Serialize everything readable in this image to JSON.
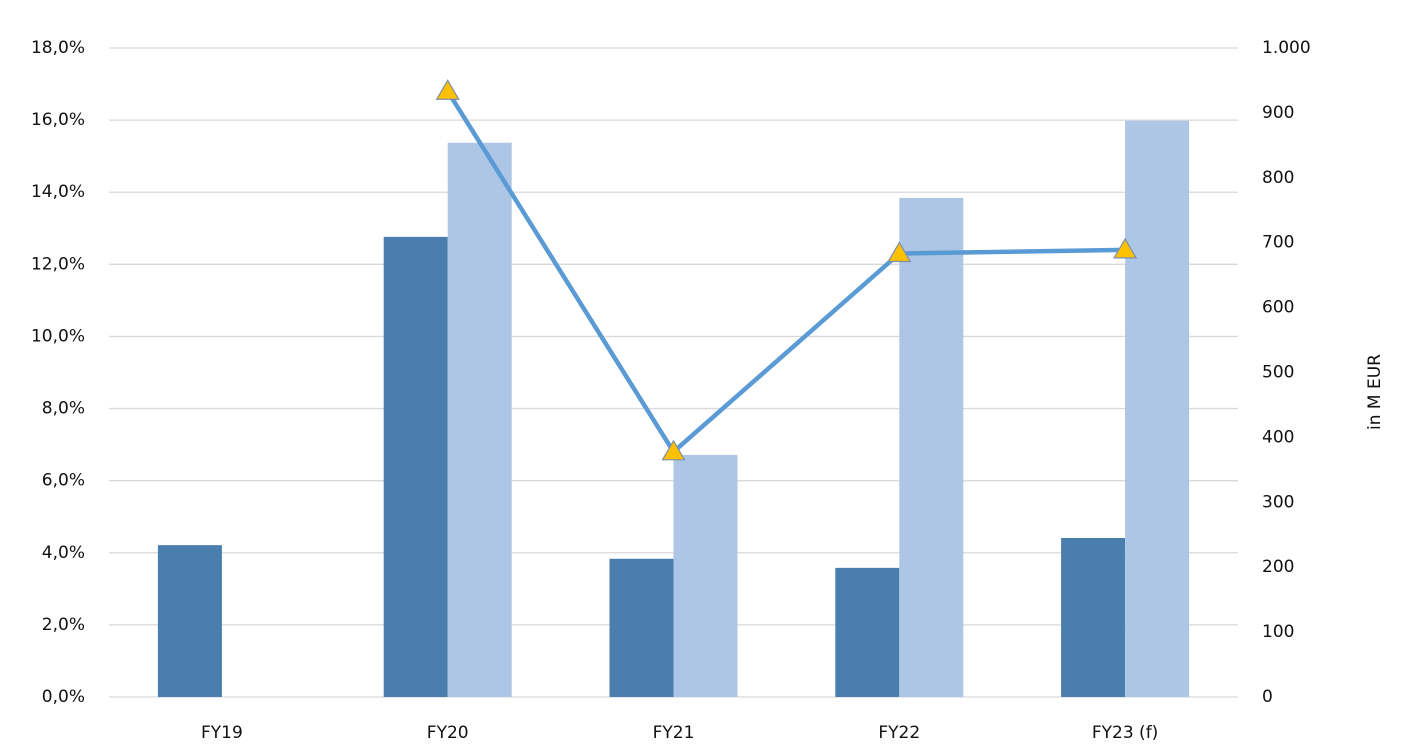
{
  "chart_data": {
    "type": "bar_line",
    "categories": [
      "FY19",
      "FY20",
      "FY21",
      "FY22",
      "FY23 (f)"
    ],
    "series": [
      {
        "type": "bar",
        "axis": "y2",
        "color": "#4a7eae",
        "values": [
          234,
          709,
          213,
          199,
          245
        ]
      },
      {
        "type": "bar",
        "axis": "y2",
        "color": "#adc6e5",
        "values": [
          null,
          854,
          373,
          769,
          888
        ]
      },
      {
        "type": "line",
        "axis": "y",
        "color": "#5b9bd5",
        "marker_color": "#ffc000",
        "values": [
          null,
          16.8,
          6.8,
          12.3,
          12.4
        ]
      }
    ],
    "ylim": [
      0,
      18
    ],
    "yticks": [
      {
        "value": 0,
        "label": "0,0%"
      },
      {
        "value": 2,
        "label": "2,0%"
      },
      {
        "value": 4,
        "label": "4,0%"
      },
      {
        "value": 6,
        "label": "6,0%"
      },
      {
        "value": 8,
        "label": "8,0%"
      },
      {
        "value": 10,
        "label": "10,0%"
      },
      {
        "value": 12,
        "label": "12,0%"
      },
      {
        "value": 14,
        "label": "14,0%"
      },
      {
        "value": 16,
        "label": "16,0%"
      },
      {
        "value": 18,
        "label": "18,0%"
      }
    ],
    "y2lim": [
      0,
      1000
    ],
    "y2ticks": [
      0,
      100,
      200,
      300,
      400,
      500,
      600,
      700,
      800,
      900,
      {
        "value": 1000,
        "label": "1.000"
      }
    ],
    "y2label": "in M EUR",
    "grid": true
  }
}
